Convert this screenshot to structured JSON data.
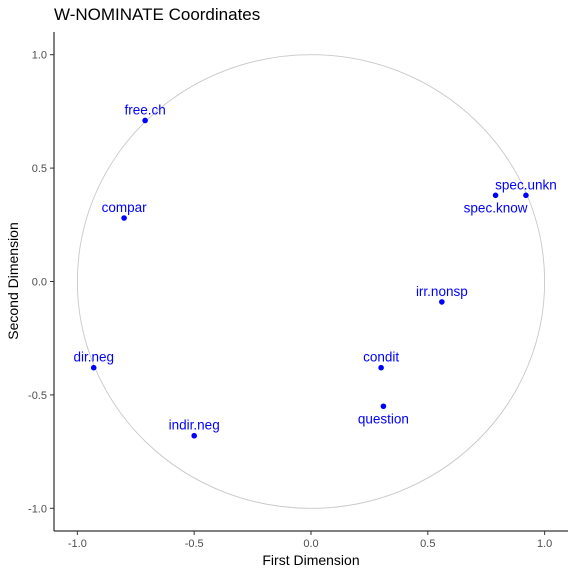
{
  "chart_data": {
    "type": "scatter",
    "title": "W-NOMINATE Coordinates",
    "xlabel": "First Dimension",
    "ylabel": "Second Dimension",
    "xlim": [
      -1.1,
      1.1
    ],
    "ylim": [
      -1.1,
      1.1
    ],
    "x_ticks": [
      -1.0,
      -0.5,
      0.0,
      0.5,
      1.0
    ],
    "x_tick_labels": [
      "-1.0",
      "-0.5",
      "0.0",
      "0.5",
      "1.0"
    ],
    "y_ticks": [
      -1.0,
      -0.5,
      0.0,
      0.5,
      1.0
    ],
    "y_tick_labels": [
      "-1.0",
      "-0.5",
      "0.0",
      "0.5",
      "1.0"
    ],
    "grid": false,
    "unit_circle": {
      "radius": 1.0,
      "color": "#c8c8c8"
    },
    "point_color": "#0000ff",
    "points": [
      {
        "label": "free.ch",
        "x": -0.71,
        "y": 0.71,
        "label_pos": "above"
      },
      {
        "label": "compar",
        "x": -0.8,
        "y": 0.28,
        "label_pos": "above"
      },
      {
        "label": "dir.neg",
        "x": -0.93,
        "y": -0.38,
        "label_pos": "above"
      },
      {
        "label": "indir.neg",
        "x": -0.5,
        "y": -0.68,
        "label_pos": "above"
      },
      {
        "label": "condit",
        "x": 0.3,
        "y": -0.38,
        "label_pos": "above"
      },
      {
        "label": "question",
        "x": 0.31,
        "y": -0.55,
        "label_pos": "below"
      },
      {
        "label": "irr.nonsp",
        "x": 0.56,
        "y": -0.09,
        "label_pos": "above"
      },
      {
        "label": "spec.unkn",
        "x": 0.92,
        "y": 0.38,
        "label_pos": "above"
      },
      {
        "label": "spec.know",
        "x": 0.79,
        "y": 0.38,
        "label_pos": "below"
      }
    ]
  }
}
